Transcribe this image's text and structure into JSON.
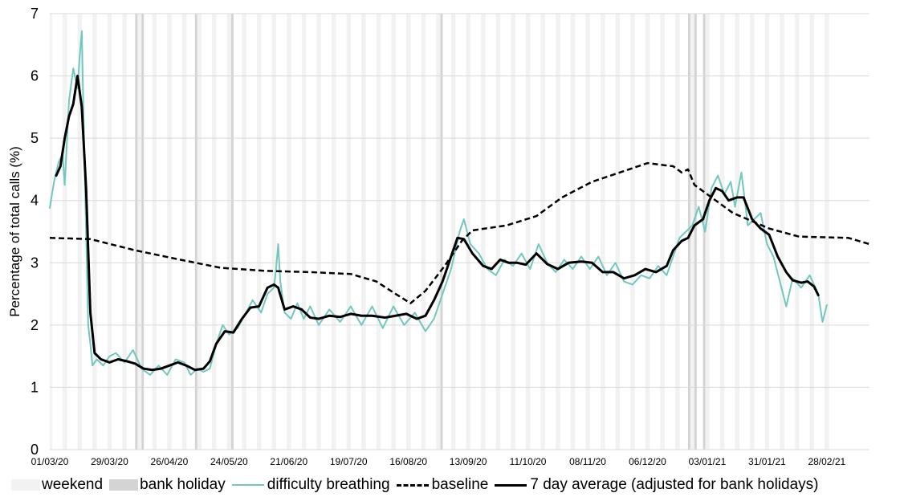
{
  "colors": {
    "weekend": "#f2f2f2",
    "bank_holiday": "#d4d4d4",
    "difficulty_breathing": "#72c7bf",
    "baseline": "#000000",
    "average": "#000000",
    "grid": "#d9d9d9"
  },
  "legend": {
    "weekend": "weekend",
    "bank_holiday": "bank holiday",
    "difficulty_breathing": "difficulty breathing",
    "baseline": "baseline",
    "average": "7 day average (adjusted for bank holidays)"
  },
  "chart_data": {
    "type": "line",
    "title": "",
    "xlabel": "",
    "ylabel": "Percentage of total calls (%)",
    "x_axis": {
      "start": "2020-03-01",
      "end": "2021-03-20",
      "tick_step_days": 28
    },
    "ylim": [
      0,
      7
    ],
    "yticks": [
      0,
      1,
      2,
      3,
      4,
      5,
      6,
      7
    ],
    "xtick_labels": [
      "01/03/20",
      "29/03/20",
      "26/04/20",
      "24/05/20",
      "21/06/20",
      "19/07/20",
      "16/08/20",
      "13/09/20",
      "11/10/20",
      "08/11/20",
      "06/12/20",
      "03/01/21",
      "31/01/21",
      "28/02/21"
    ],
    "grid": "horizontal",
    "legend_position": "bottom",
    "shading": {
      "weekend": "Saturdays and Sundays, 01/03/20 to 28/02/21",
      "bank_holidays": [
        "2020-04-10",
        "2020-04-13",
        "2020-05-08",
        "2020-05-25",
        "2020-08-31",
        "2020-12-25",
        "2020-12-28",
        "2021-01-01"
      ]
    },
    "series": [
      {
        "name": "difficulty breathing",
        "style": "line",
        "points": [
          [
            "2020-03-01",
            3.88
          ],
          [
            "2020-03-03",
            4.3
          ],
          [
            "2020-03-05",
            4.6
          ],
          [
            "2020-03-07",
            4.75
          ],
          [
            "2020-03-08",
            4.25
          ],
          [
            "2020-03-10",
            5.6
          ],
          [
            "2020-03-12",
            6.12
          ],
          [
            "2020-03-14",
            5.8
          ],
          [
            "2020-03-15",
            6.3
          ],
          [
            "2020-03-16",
            6.72
          ],
          [
            "2020-03-17",
            5.0
          ],
          [
            "2020-03-18",
            3.5
          ],
          [
            "2020-03-19",
            2.0
          ],
          [
            "2020-03-20",
            1.7
          ],
          [
            "2020-03-21",
            1.35
          ],
          [
            "2020-03-23",
            1.45
          ],
          [
            "2020-03-26",
            1.35
          ],
          [
            "2020-03-29",
            1.5
          ],
          [
            "2020-04-01",
            1.55
          ],
          [
            "2020-04-05",
            1.4
          ],
          [
            "2020-04-09",
            1.6
          ],
          [
            "2020-04-13",
            1.3
          ],
          [
            "2020-04-17",
            1.2
          ],
          [
            "2020-04-21",
            1.35
          ],
          [
            "2020-04-25",
            1.2
          ],
          [
            "2020-04-29",
            1.45
          ],
          [
            "2020-05-03",
            1.4
          ],
          [
            "2020-05-06",
            1.2
          ],
          [
            "2020-05-09",
            1.3
          ],
          [
            "2020-05-12",
            1.25
          ],
          [
            "2020-05-15",
            1.3
          ],
          [
            "2020-05-18",
            1.7
          ],
          [
            "2020-05-21",
            2.0
          ],
          [
            "2020-05-24",
            1.85
          ],
          [
            "2020-05-28",
            1.95
          ],
          [
            "2020-06-01",
            2.2
          ],
          [
            "2020-06-04",
            2.4
          ],
          [
            "2020-06-08",
            2.2
          ],
          [
            "2020-06-11",
            2.5
          ],
          [
            "2020-06-14",
            2.6
          ],
          [
            "2020-06-15",
            2.9
          ],
          [
            "2020-06-16",
            3.3
          ],
          [
            "2020-06-17",
            2.7
          ],
          [
            "2020-06-19",
            2.2
          ],
          [
            "2020-06-22",
            2.1
          ],
          [
            "2020-06-25",
            2.35
          ],
          [
            "2020-06-28",
            2.1
          ],
          [
            "2020-07-01",
            2.3
          ],
          [
            "2020-07-05",
            2.0
          ],
          [
            "2020-07-10",
            2.25
          ],
          [
            "2020-07-15",
            2.05
          ],
          [
            "2020-07-20",
            2.3
          ],
          [
            "2020-07-25",
            2.0
          ],
          [
            "2020-07-30",
            2.3
          ],
          [
            "2020-08-04",
            1.95
          ],
          [
            "2020-08-09",
            2.3
          ],
          [
            "2020-08-14",
            2.0
          ],
          [
            "2020-08-19",
            2.2
          ],
          [
            "2020-08-24",
            1.9
          ],
          [
            "2020-08-28",
            2.1
          ],
          [
            "2020-09-01",
            2.5
          ],
          [
            "2020-09-05",
            2.9
          ],
          [
            "2020-09-09",
            3.5
          ],
          [
            "2020-09-11",
            3.7
          ],
          [
            "2020-09-14",
            3.3
          ],
          [
            "2020-09-18",
            3.15
          ],
          [
            "2020-09-22",
            2.9
          ],
          [
            "2020-09-26",
            2.8
          ],
          [
            "2020-09-30",
            3.05
          ],
          [
            "2020-10-04",
            2.95
          ],
          [
            "2020-10-08",
            3.15
          ],
          [
            "2020-10-12",
            2.9
          ],
          [
            "2020-10-16",
            3.3
          ],
          [
            "2020-10-20",
            3.0
          ],
          [
            "2020-10-24",
            2.85
          ],
          [
            "2020-10-28",
            3.05
          ],
          [
            "2020-11-01",
            2.9
          ],
          [
            "2020-11-05",
            3.1
          ],
          [
            "2020-11-09",
            2.9
          ],
          [
            "2020-11-13",
            3.1
          ],
          [
            "2020-11-17",
            2.8
          ],
          [
            "2020-11-21",
            3.0
          ],
          [
            "2020-11-25",
            2.7
          ],
          [
            "2020-11-29",
            2.65
          ],
          [
            "2020-12-03",
            2.8
          ],
          [
            "2020-12-07",
            2.75
          ],
          [
            "2020-12-11",
            2.95
          ],
          [
            "2020-12-15",
            2.8
          ],
          [
            "2020-12-18",
            3.1
          ],
          [
            "2020-12-21",
            3.4
          ],
          [
            "2020-12-24",
            3.5
          ],
          [
            "2020-12-27",
            3.6
          ],
          [
            "2020-12-30",
            3.9
          ],
          [
            "2021-01-02",
            3.5
          ],
          [
            "2021-01-05",
            4.2
          ],
          [
            "2021-01-08",
            4.4
          ],
          [
            "2021-01-11",
            4.1
          ],
          [
            "2021-01-14",
            4.3
          ],
          [
            "2021-01-16",
            3.9
          ],
          [
            "2021-01-19",
            4.45
          ],
          [
            "2021-01-22",
            3.6
          ],
          [
            "2021-01-25",
            3.7
          ],
          [
            "2021-01-28",
            3.8
          ],
          [
            "2021-01-31",
            3.3
          ],
          [
            "2021-02-03",
            3.1
          ],
          [
            "2021-02-06",
            2.7
          ],
          [
            "2021-02-09",
            2.3
          ],
          [
            "2021-02-12",
            2.75
          ],
          [
            "2021-02-16",
            2.6
          ],
          [
            "2021-02-20",
            2.8
          ],
          [
            "2021-02-24",
            2.5
          ],
          [
            "2021-02-26",
            2.05
          ],
          [
            "2021-02-28",
            2.32
          ]
        ]
      },
      {
        "name": "baseline",
        "style": "dashed",
        "points": [
          [
            "2020-03-01",
            3.4
          ],
          [
            "2020-03-20",
            3.38
          ],
          [
            "2020-04-10",
            3.2
          ],
          [
            "2020-05-01",
            3.05
          ],
          [
            "2020-05-20",
            2.92
          ],
          [
            "2020-06-10",
            2.87
          ],
          [
            "2020-07-01",
            2.85
          ],
          [
            "2020-07-20",
            2.82
          ],
          [
            "2020-08-01",
            2.7
          ],
          [
            "2020-08-10",
            2.5
          ],
          [
            "2020-08-17",
            2.35
          ],
          [
            "2020-08-24",
            2.55
          ],
          [
            "2020-09-02",
            2.95
          ],
          [
            "2020-09-10",
            3.35
          ],
          [
            "2020-09-15",
            3.52
          ],
          [
            "2020-10-01",
            3.6
          ],
          [
            "2020-10-15",
            3.75
          ],
          [
            "2020-10-27",
            4.05
          ],
          [
            "2020-11-10",
            4.3
          ],
          [
            "2020-12-06",
            4.6
          ],
          [
            "2020-12-18",
            4.55
          ],
          [
            "2020-12-22",
            4.45
          ],
          [
            "2020-12-25",
            4.5
          ],
          [
            "2020-12-28",
            4.25
          ],
          [
            "2021-01-05",
            4.05
          ],
          [
            "2021-01-15",
            3.8
          ],
          [
            "2021-02-01",
            3.55
          ],
          [
            "2021-02-15",
            3.42
          ],
          [
            "2021-03-10",
            3.4
          ],
          [
            "2021-03-20",
            3.3
          ]
        ]
      },
      {
        "name": "7 day average (adjusted for bank holidays)",
        "style": "bold",
        "points": [
          [
            "2020-03-04",
            4.4
          ],
          [
            "2020-03-06",
            4.55
          ],
          [
            "2020-03-08",
            5.0
          ],
          [
            "2020-03-10",
            5.35
          ],
          [
            "2020-03-12",
            5.55
          ],
          [
            "2020-03-14",
            6.0
          ],
          [
            "2020-03-16",
            5.5
          ],
          [
            "2020-03-18",
            4.2
          ],
          [
            "2020-03-20",
            2.2
          ],
          [
            "2020-03-22",
            1.55
          ],
          [
            "2020-03-25",
            1.45
          ],
          [
            "2020-03-29",
            1.4
          ],
          [
            "2020-04-02",
            1.45
          ],
          [
            "2020-04-06",
            1.42
          ],
          [
            "2020-04-10",
            1.38
          ],
          [
            "2020-04-14",
            1.3
          ],
          [
            "2020-04-18",
            1.28
          ],
          [
            "2020-04-22",
            1.3
          ],
          [
            "2020-04-26",
            1.35
          ],
          [
            "2020-04-30",
            1.4
          ],
          [
            "2020-05-04",
            1.35
          ],
          [
            "2020-05-08",
            1.28
          ],
          [
            "2020-05-12",
            1.3
          ],
          [
            "2020-05-15",
            1.42
          ],
          [
            "2020-05-18",
            1.7
          ],
          [
            "2020-05-22",
            1.9
          ],
          [
            "2020-05-26",
            1.88
          ],
          [
            "2020-05-30",
            2.1
          ],
          [
            "2020-06-03",
            2.28
          ],
          [
            "2020-06-07",
            2.3
          ],
          [
            "2020-06-11",
            2.6
          ],
          [
            "2020-06-14",
            2.65
          ],
          [
            "2020-06-16",
            2.6
          ],
          [
            "2020-06-19",
            2.25
          ],
          [
            "2020-06-23",
            2.3
          ],
          [
            "2020-06-27",
            2.25
          ],
          [
            "2020-07-01",
            2.12
          ],
          [
            "2020-07-05",
            2.1
          ],
          [
            "2020-07-10",
            2.15
          ],
          [
            "2020-07-15",
            2.13
          ],
          [
            "2020-07-20",
            2.18
          ],
          [
            "2020-07-25",
            2.15
          ],
          [
            "2020-07-30",
            2.15
          ],
          [
            "2020-08-05",
            2.12
          ],
          [
            "2020-08-10",
            2.15
          ],
          [
            "2020-08-15",
            2.18
          ],
          [
            "2020-08-20",
            2.1
          ],
          [
            "2020-08-24",
            2.15
          ],
          [
            "2020-08-28",
            2.4
          ],
          [
            "2020-09-01",
            2.7
          ],
          [
            "2020-09-05",
            3.1
          ],
          [
            "2020-09-08",
            3.4
          ],
          [
            "2020-09-11",
            3.38
          ],
          [
            "2020-09-15",
            3.15
          ],
          [
            "2020-09-20",
            2.95
          ],
          [
            "2020-09-24",
            2.9
          ],
          [
            "2020-09-28",
            3.05
          ],
          [
            "2020-10-02",
            3.0
          ],
          [
            "2020-10-06",
            3.0
          ],
          [
            "2020-10-10",
            2.97
          ],
          [
            "2020-10-15",
            3.15
          ],
          [
            "2020-10-20",
            2.98
          ],
          [
            "2020-10-25",
            2.9
          ],
          [
            "2020-10-30",
            3.0
          ],
          [
            "2020-11-05",
            3.02
          ],
          [
            "2020-11-10",
            3.0
          ],
          [
            "2020-11-15",
            2.85
          ],
          [
            "2020-11-20",
            2.85
          ],
          [
            "2020-11-25",
            2.75
          ],
          [
            "2020-11-30",
            2.8
          ],
          [
            "2020-12-05",
            2.9
          ],
          [
            "2020-12-10",
            2.85
          ],
          [
            "2020-12-15",
            2.95
          ],
          [
            "2020-12-18",
            3.2
          ],
          [
            "2020-12-22",
            3.35
          ],
          [
            "2020-12-25",
            3.4
          ],
          [
            "2020-12-28",
            3.6
          ],
          [
            "2021-01-01",
            3.7
          ],
          [
            "2021-01-04",
            4.0
          ],
          [
            "2021-01-07",
            4.2
          ],
          [
            "2021-01-10",
            4.15
          ],
          [
            "2021-01-13",
            4.0
          ],
          [
            "2021-01-17",
            4.05
          ],
          [
            "2021-01-20",
            4.05
          ],
          [
            "2021-01-24",
            3.7
          ],
          [
            "2021-01-28",
            3.55
          ],
          [
            "2021-02-01",
            3.45
          ],
          [
            "2021-02-05",
            3.1
          ],
          [
            "2021-02-09",
            2.85
          ],
          [
            "2021-02-12",
            2.72
          ],
          [
            "2021-02-16",
            2.68
          ],
          [
            "2021-02-19",
            2.7
          ],
          [
            "2021-02-22",
            2.62
          ],
          [
            "2021-02-24",
            2.48
          ]
        ]
      }
    ]
  }
}
